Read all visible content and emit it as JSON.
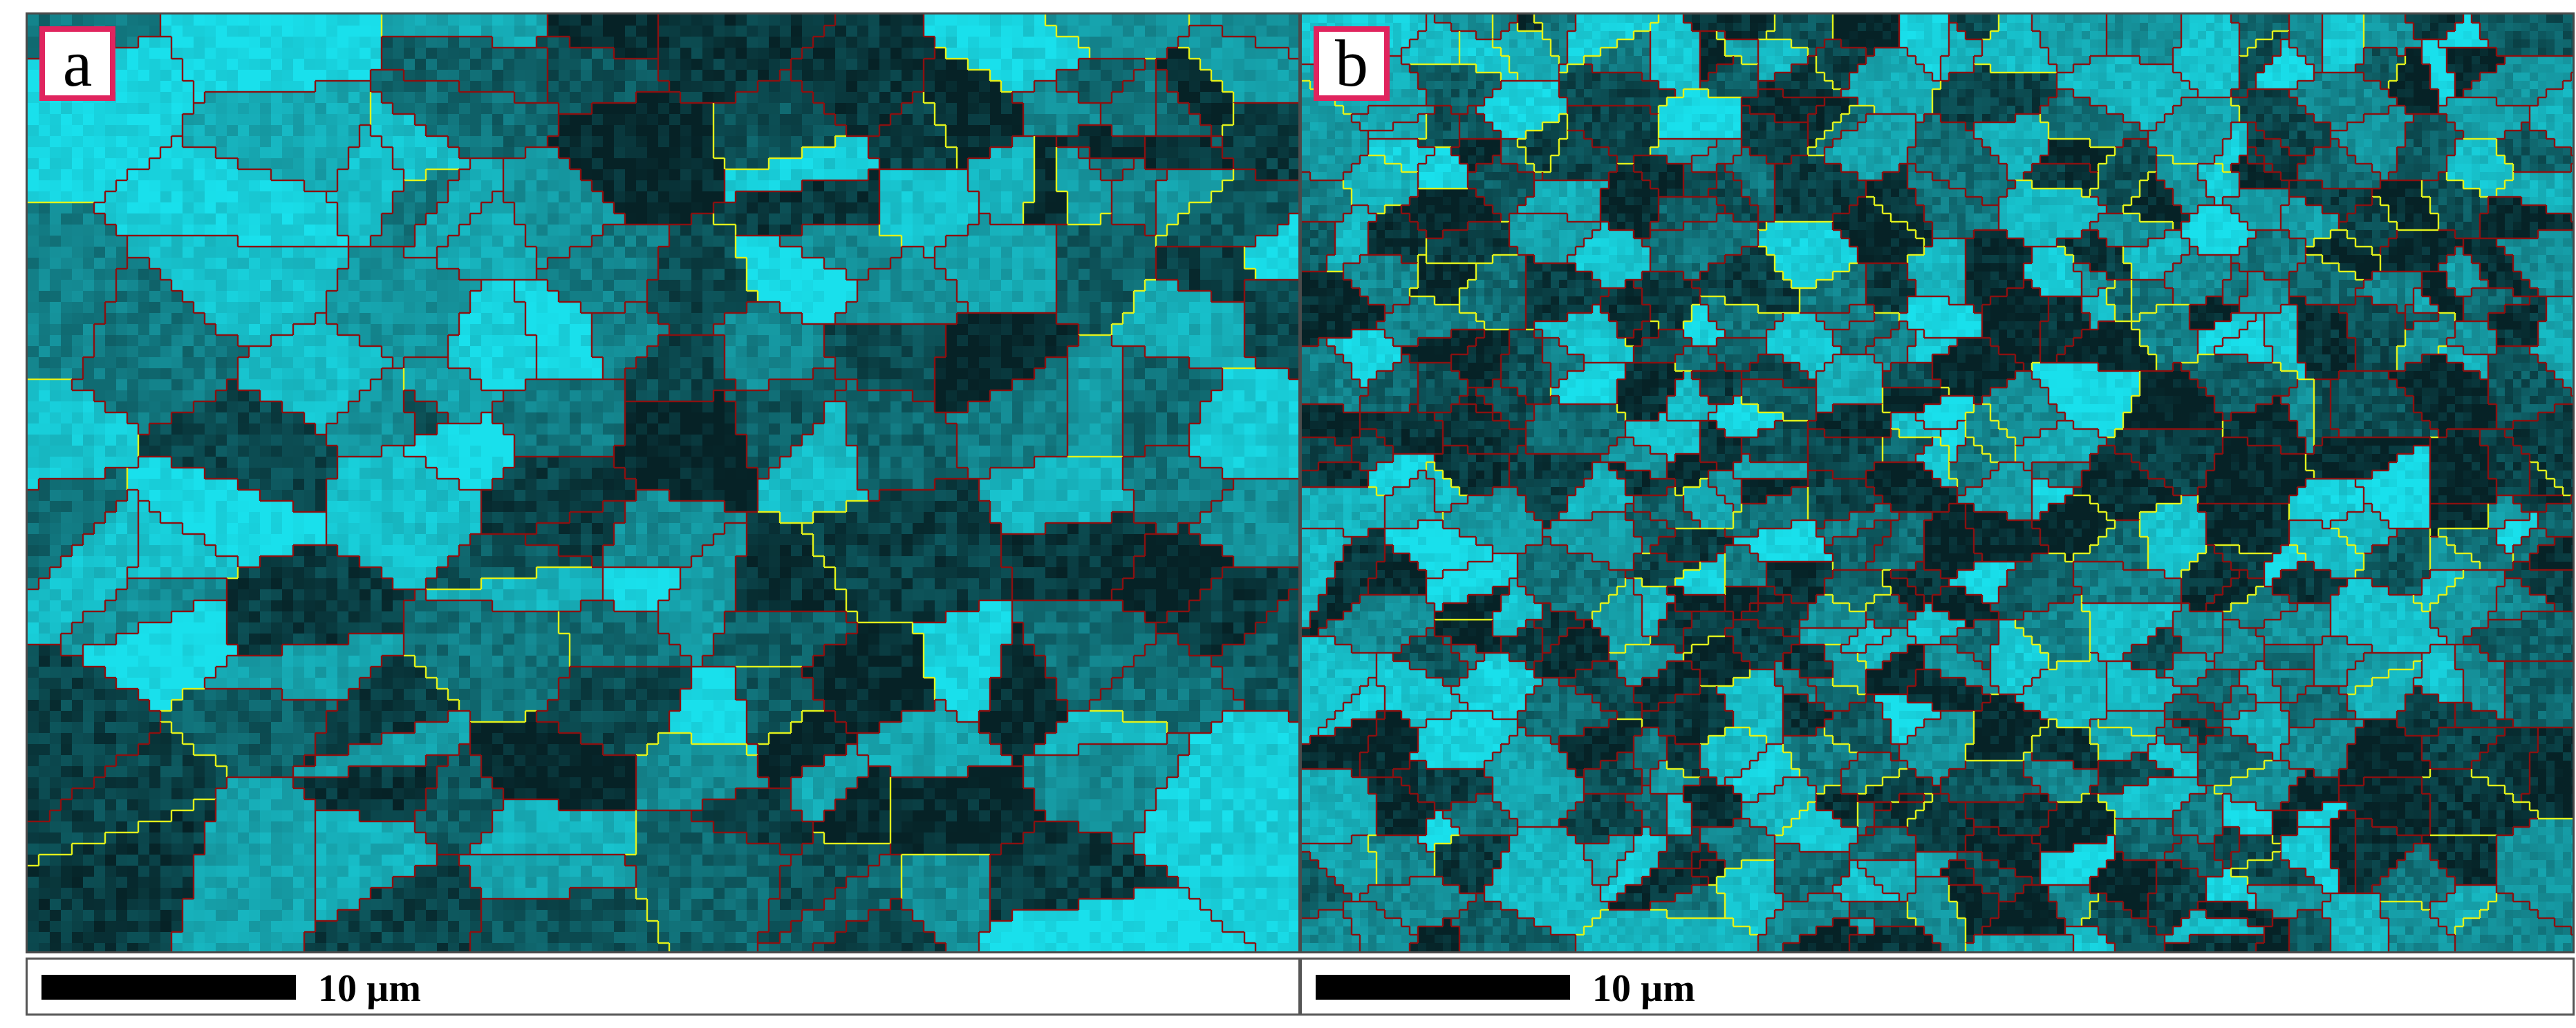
{
  "panels": [
    {
      "label": "a",
      "scale_text": "10 µm",
      "texture": "coarse"
    },
    {
      "label": "b",
      "scale_text": "10 µm",
      "texture": "fine"
    }
  ],
  "colors": {
    "background": "#0d2b2e",
    "cyan_bright": "#19e0ec",
    "cyan_mid": "#158f98",
    "cyan_dark": "#062226",
    "boundary_high_angle": "#8b1010",
    "boundary_low_angle": "#e3f21a",
    "label_border": "#e0245e"
  }
}
